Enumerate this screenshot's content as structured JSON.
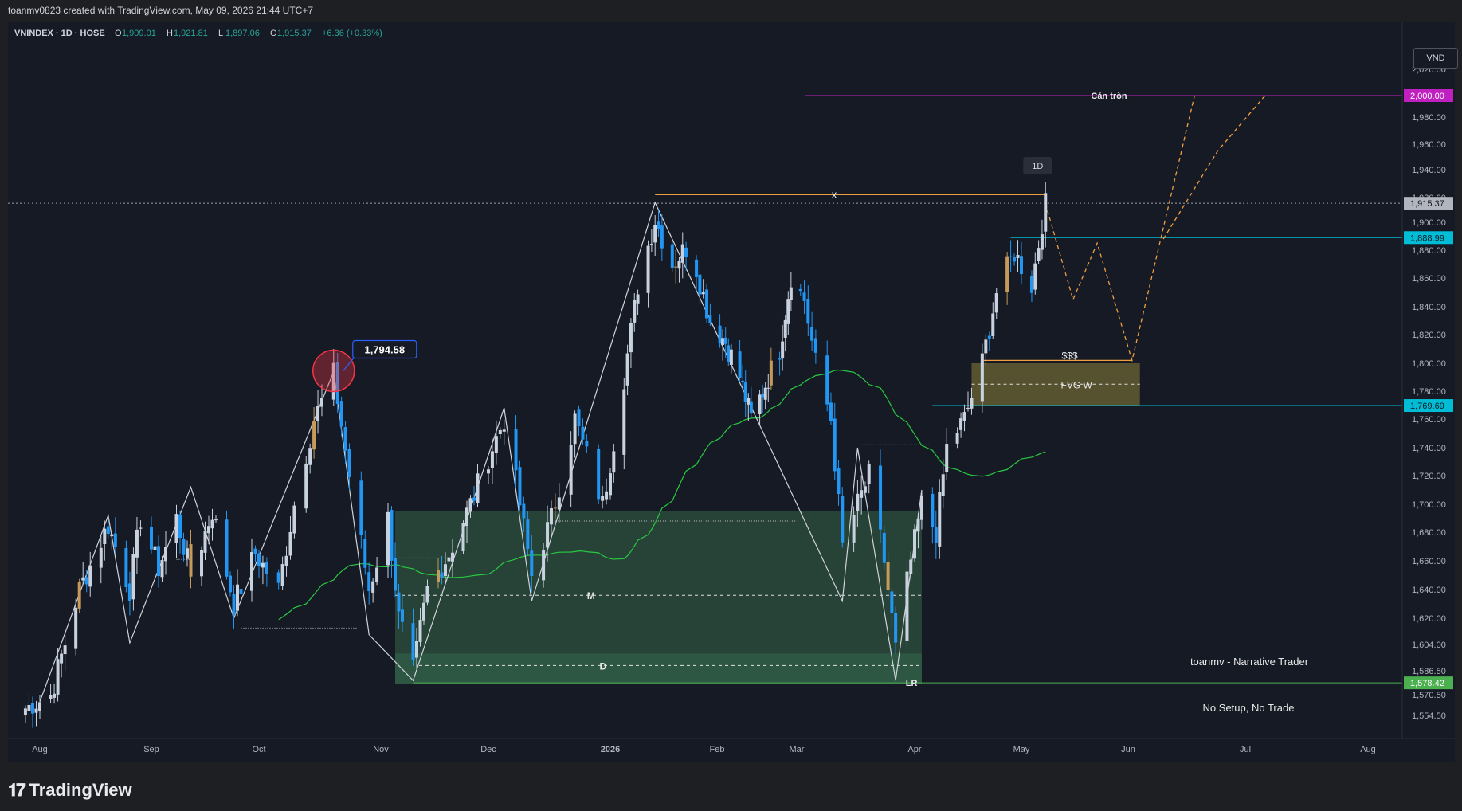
{
  "header": {
    "credit": "toanmv0823 created with TradingView.com, May 09, 2026 21:44 UTC+7"
  },
  "legend": {
    "symbol": "VNINDEX · 1D · HOSE",
    "o_label": "O",
    "o": "1,909.01",
    "h_label": "H",
    "h": "1,921.81",
    "l_label": "L",
    "l": "1,897.06",
    "c_label": "C",
    "c": "1,915.37",
    "change": "+6.36 (+0.33%)"
  },
  "currency_button": "VND",
  "brand": {
    "logo_text": "TradingView"
  },
  "colors": {
    "bg": "#161a25",
    "up": "#c8d2df",
    "down": "#2196f3",
    "highlight": "#c79a5a",
    "ma": "#28c940",
    "zone_green": "#2a4a3a",
    "zone_fvg": "#5a5530",
    "cyan": "#00bcd4",
    "magenta": "#c020c0",
    "projection": "#f0a040",
    "circle": "#f23645"
  },
  "chart_data": {
    "type": "candlestick",
    "timeframe": "1D",
    "y_ticks": [
      1554.5,
      1570.5,
      1586.5,
      1604.0,
      1620.0,
      1640.0,
      1660.0,
      1680.0,
      1700.0,
      1720.0,
      1740.0,
      1760.0,
      1780.0,
      1800.0,
      1820.0,
      1840.0,
      1860.0,
      1880.0,
      1900.0,
      1920.0,
      1940.0,
      1960.0,
      1980.0,
      2000.0,
      2020.0
    ],
    "y_tick_labels": [
      "1,554.50",
      "1,570.50",
      "1,586.50",
      "1,604.00",
      "1,620.00",
      "1,640.00",
      "1,660.00",
      "1,680.00",
      "1,700.00",
      "1,720.00",
      "1,740.00",
      "1,760.00",
      "1,780.00",
      "1,800.00",
      "1,820.00",
      "1,840.00",
      "1,860.00",
      "1,880.00",
      "1,900.00",
      "1,920.00",
      "1,940.00",
      "1,960.00",
      "1,980.00",
      "2,000.00",
      "2,020.00"
    ],
    "x_labels": [
      {
        "label": "Aug",
        "date": "2025-08-01"
      },
      {
        "label": "Sep",
        "date": "2025-09-01"
      },
      {
        "label": "Oct",
        "date": "2025-10-01"
      },
      {
        "label": "Nov",
        "date": "2025-11-01"
      },
      {
        "label": "Dec",
        "date": "2025-12-01"
      },
      {
        "label": "2026",
        "date": "2026-01-01"
      },
      {
        "label": "Feb",
        "date": "2026-02-01"
      },
      {
        "label": "Mar",
        "date": "2026-03-01"
      },
      {
        "label": "Apr",
        "date": "2026-04-01"
      },
      {
        "label": "May",
        "date": "2026-05-01"
      },
      {
        "label": "Jun",
        "date": "2026-06-01"
      },
      {
        "label": "Jul",
        "date": "2026-07-01"
      },
      {
        "label": "Aug",
        "date": "2026-08-01"
      }
    ],
    "price_anchors": [
      [
        "2025-07-28",
        1560
      ],
      [
        "2025-08-04",
        1570
      ],
      [
        "2025-08-12",
        1640
      ],
      [
        "2025-08-20",
        1685
      ],
      [
        "2025-08-26",
        1640
      ],
      [
        "2025-08-29",
        1690
      ],
      [
        "2025-09-03",
        1655
      ],
      [
        "2025-09-08",
        1690
      ],
      [
        "2025-09-12",
        1650
      ],
      [
        "2025-09-18",
        1695
      ],
      [
        "2025-09-24",
        1630
      ],
      [
        "2025-09-30",
        1665
      ],
      [
        "2025-10-06",
        1640
      ],
      [
        "2025-10-10",
        1700
      ],
      [
        "2025-10-15",
        1760
      ],
      [
        "2025-10-20",
        1792
      ],
      [
        "2025-10-24",
        1720
      ],
      [
        "2025-10-29",
        1640
      ],
      [
        "2025-11-03",
        1690
      ],
      [
        "2025-11-06",
        1620
      ],
      [
        "2025-11-10",
        1585
      ],
      [
        "2025-11-14",
        1640
      ],
      [
        "2025-11-20",
        1665
      ],
      [
        "2025-11-26",
        1700
      ],
      [
        "2025-12-02",
        1740
      ],
      [
        "2025-12-05",
        1760
      ],
      [
        "2025-12-09",
        1700
      ],
      [
        "2025-12-12",
        1650
      ],
      [
        "2025-12-17",
        1690
      ],
      [
        "2025-12-23",
        1760
      ],
      [
        "2025-12-30",
        1700
      ],
      [
        "2026-01-05",
        1790
      ],
      [
        "2026-01-09",
        1855
      ],
      [
        "2026-01-14",
        1902
      ],
      [
        "2026-01-19",
        1870
      ],
      [
        "2026-01-24",
        1885
      ],
      [
        "2026-01-30",
        1830
      ],
      [
        "2026-02-04",
        1815
      ],
      [
        "2026-02-09",
        1790
      ],
      [
        "2026-02-13",
        1760
      ],
      [
        "2026-02-23",
        1810
      ],
      [
        "2026-02-27",
        1862
      ],
      [
        "2026-03-03",
        1845
      ],
      [
        "2026-03-06",
        1800
      ],
      [
        "2026-03-10",
        1760
      ],
      [
        "2026-03-13",
        1670
      ],
      [
        "2026-03-17",
        1700
      ],
      [
        "2026-03-20",
        1720
      ],
      [
        "2026-03-24",
        1660
      ],
      [
        "2026-03-27",
        1600
      ],
      [
        "2026-03-31",
        1660
      ],
      [
        "2026-04-03",
        1700
      ],
      [
        "2026-04-07",
        1680
      ],
      [
        "2026-04-10",
        1740
      ],
      [
        "2026-04-15",
        1760
      ],
      [
        "2026-04-20",
        1800
      ],
      [
        "2026-04-24",
        1850
      ],
      [
        "2026-04-29",
        1878
      ],
      [
        "2026-05-04",
        1855
      ],
      [
        "2026-05-08",
        1915
      ]
    ],
    "overlays": {
      "current_price": {
        "value": 1915.37,
        "label": "1,915.37"
      },
      "resistance_2000": {
        "value": 2000.0,
        "label": "2,000.00",
        "note": "Cản tròn"
      },
      "level_1888": {
        "value": 1888.99,
        "label": "1,888.99"
      },
      "level_1769": {
        "value": 1769.69,
        "label": "1,769.69"
      },
      "level_1578": {
        "value": 1578.42,
        "label": "1,578.42",
        "note": "LR"
      },
      "peak_label": {
        "value": 1794.58,
        "label": "1,794.58"
      },
      "range_box": {
        "from": "2025-11-05",
        "to": "2026-04-03",
        "top": 1695,
        "bottom": 1578,
        "mid_label": "M",
        "mid_value": 1636,
        "low_label": "D",
        "low_value": 1590
      },
      "fvg_box": {
        "from": "2026-04-17",
        "to": "2026-06-04",
        "top": 1800,
        "bottom": 1770,
        "label": "FVG W",
        "liquidity_label": "$$$"
      },
      "x_marker": {
        "label": "x",
        "value": 1922
      },
      "timeframe_badge": "1D"
    },
    "annotations": {
      "author": "toanmv - Narrative Trader",
      "motto": "No Setup, No Trade"
    },
    "projection_paths": [
      [
        [
          "2026-05-08",
          1915
        ],
        [
          "2026-05-16",
          1845
        ],
        [
          "2026-05-23",
          1885
        ],
        [
          "2026-06-02",
          1802
        ],
        [
          "2026-06-18",
          2000
        ]
      ],
      [
        [
          "2026-06-10",
          1888
        ],
        [
          "2026-06-24",
          1955
        ],
        [
          "2026-07-06",
          2000
        ]
      ]
    ]
  }
}
